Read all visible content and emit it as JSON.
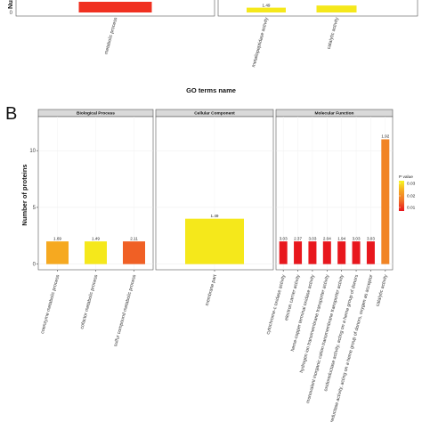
{
  "panel_b_label": "B",
  "top_xaxis_title": "GO terms name",
  "chart_data": [
    {
      "type": "bar",
      "panel": "A (partially visible)",
      "ylabel": "Num",
      "y_tick_visible": "0",
      "facets": [
        {
          "name": "",
          "categories": [
            "metabolic process"
          ],
          "values": [
            2
          ],
          "colors": [
            "#f03020"
          ],
          "labels": [
            ""
          ]
        },
        {
          "name": "",
          "categories": [
            "metallopeptidase activity",
            "catalytic activity"
          ],
          "values": [
            0.9,
            1.3
          ],
          "colors": [
            "#f5e81b",
            "#f5e81b"
          ],
          "labels": [
            "1.49",
            ""
          ]
        }
      ]
    },
    {
      "type": "bar",
      "panel": "B",
      "ylabel": "Number of proteins",
      "ylim": [
        -0.5,
        13
      ],
      "yticks": [
        "0",
        "5",
        "10"
      ],
      "grid": true,
      "legend": {
        "title": "P value",
        "placement": "right",
        "ticks": [
          "0.03",
          "0.02",
          "0.01"
        ],
        "colors": [
          "#f7f71f",
          "#f5a623",
          "#f07029",
          "#e8131b"
        ]
      },
      "facets": [
        {
          "name": "Biological Process",
          "categories": [
            "coenzyme metabolic process",
            "cofactor metabolic process",
            "sulfur compound metabolic process"
          ],
          "values": [
            2,
            2,
            2
          ],
          "labels": [
            "1.69",
            "1.49",
            "2.11"
          ],
          "colors": [
            "#f6a920",
            "#f5e81b",
            "#f06025"
          ]
        },
        {
          "name": "Cellular Component",
          "categories": [
            "membrane part"
          ],
          "values": [
            4
          ],
          "labels": [
            "1.49"
          ],
          "colors": [
            "#f5e81b"
          ]
        },
        {
          "name": "Molecular Function",
          "categories": [
            "cytochrome-c oxidase activity",
            "electron carrier activity",
            "heme-copper terminal oxidase activity",
            "hydrogen ion transmembrane transporter activity",
            "monovalent inorganic cation transmembrane transporter activity",
            "oxidoreductase activity, acting on a heme group of donors",
            "oxidoreductase activity, acting on a heme group of donors, oxygen as acceptor",
            "catalytic activity"
          ],
          "values": [
            2,
            2,
            2,
            2,
            2,
            2,
            2,
            11
          ],
          "labels": [
            "3.03",
            "2.37",
            "3.03",
            "2.04",
            "1.94",
            "3.03",
            "3.03",
            "1.92"
          ],
          "colors": [
            "#e8171d",
            "#e8171d",
            "#e8171d",
            "#e8171d",
            "#e8171d",
            "#e8171d",
            "#e8171d",
            "#f18424"
          ]
        }
      ]
    }
  ]
}
